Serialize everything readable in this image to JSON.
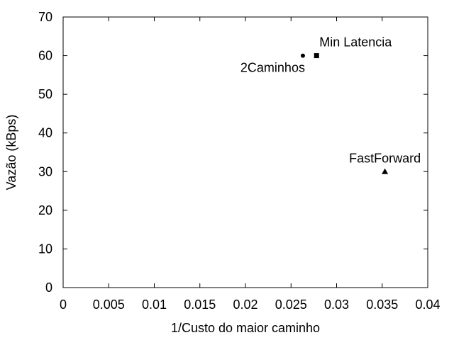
{
  "chart_data": {
    "type": "scatter",
    "title": "",
    "xlabel": "1/Custo do maior caminho",
    "ylabel": "Vazão (kBps)",
    "xlim": [
      0,
      0.04
    ],
    "ylim": [
      0,
      70
    ],
    "x_ticks": [
      "0",
      "0.005",
      "0.01",
      "0.015",
      "0.02",
      "0.025",
      "0.03",
      "0.035",
      "0.04"
    ],
    "y_ticks": [
      "0",
      "10",
      "20",
      "30",
      "40",
      "50",
      "60",
      "70"
    ],
    "grid": false,
    "legend": "none",
    "points": [
      {
        "label": "2Caminhos",
        "x": 0.0263,
        "y": 60,
        "marker": "circle",
        "label_position": "bottom-left"
      },
      {
        "label": "Min Latencia",
        "x": 0.0278,
        "y": 60,
        "marker": "square",
        "label_position": "top-right"
      },
      {
        "label": "FastForward",
        "x": 0.0353,
        "y": 30,
        "marker": "triangle",
        "label_position": "top"
      }
    ]
  }
}
